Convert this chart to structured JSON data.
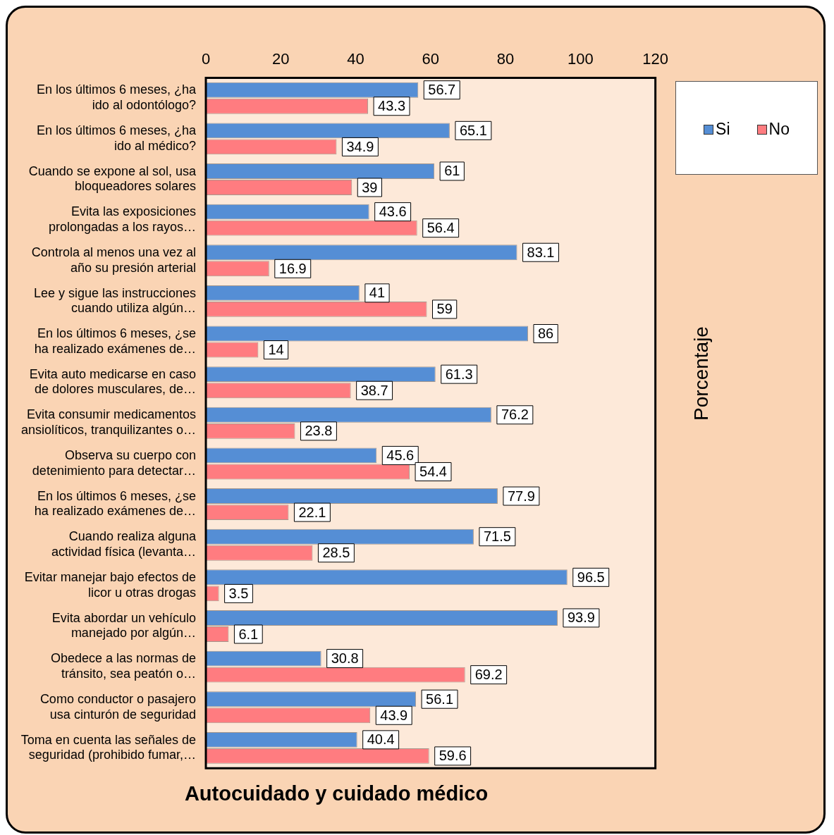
{
  "chart_data": {
    "type": "bar",
    "orientation": "horizontal",
    "title": "Autocuidado y cuidado médico",
    "annotations": [
      "Porcentaje"
    ],
    "categories": [
      "En los últimos 6 meses, ¿ha ido al odontólogo?",
      "En los últimos 6 meses, ¿ha ido al médico?",
      "Cuando se expone al sol, usa bloqueadores solares",
      "Evita las exposiciones prolongadas a los rayos…",
      "Controla al menos una vez al año su presión arterial",
      "Lee y sigue las instrucciones cuando utiliza algún…",
      "En los últimos 6 meses, ¿se ha realizado exámenes de…",
      "Evita auto medicarse en caso de dolores musculares, de…",
      "Evita consumir medicamentos ansiolíticos, tranquilizantes o…",
      "Observa su cuerpo con detenimiento para detectar…",
      "En los últimos 6 meses, ¿se ha realizado exámenes de…",
      "Cuando realiza alguna actividad física (levanta…",
      "Evitar manejar bajo efectos de licor u otras drogas",
      "Evita abordar un vehículo manejado por algún…",
      "Obedece a las normas de tránsito, sea peatón o…",
      "Como conductor o pasajero usa cinturón de seguridad",
      "Toma en cuenta las señales de seguridad (prohibido fumar,…"
    ],
    "series": [
      {
        "name": "Si",
        "color": "#558ed5",
        "values": [
          56.7,
          65.1,
          61,
          43.6,
          83.1,
          41,
          86,
          61.3,
          76.2,
          45.6,
          77.9,
          71.5,
          96.5,
          93.9,
          30.8,
          56.1,
          40.4
        ]
      },
      {
        "name": "No",
        "color": "#ff7c80",
        "values": [
          43.3,
          34.9,
          39,
          56.4,
          16.9,
          59,
          14,
          38.7,
          23.8,
          54.4,
          22.1,
          28.5,
          3.5,
          6.1,
          69.2,
          43.9,
          59.6
        ]
      }
    ],
    "xlim": [
      0,
      120
    ],
    "xticks": [
      0,
      20,
      40,
      60,
      80,
      100,
      120
    ],
    "grid": false,
    "legend": "top right",
    "data_labels": true
  }
}
